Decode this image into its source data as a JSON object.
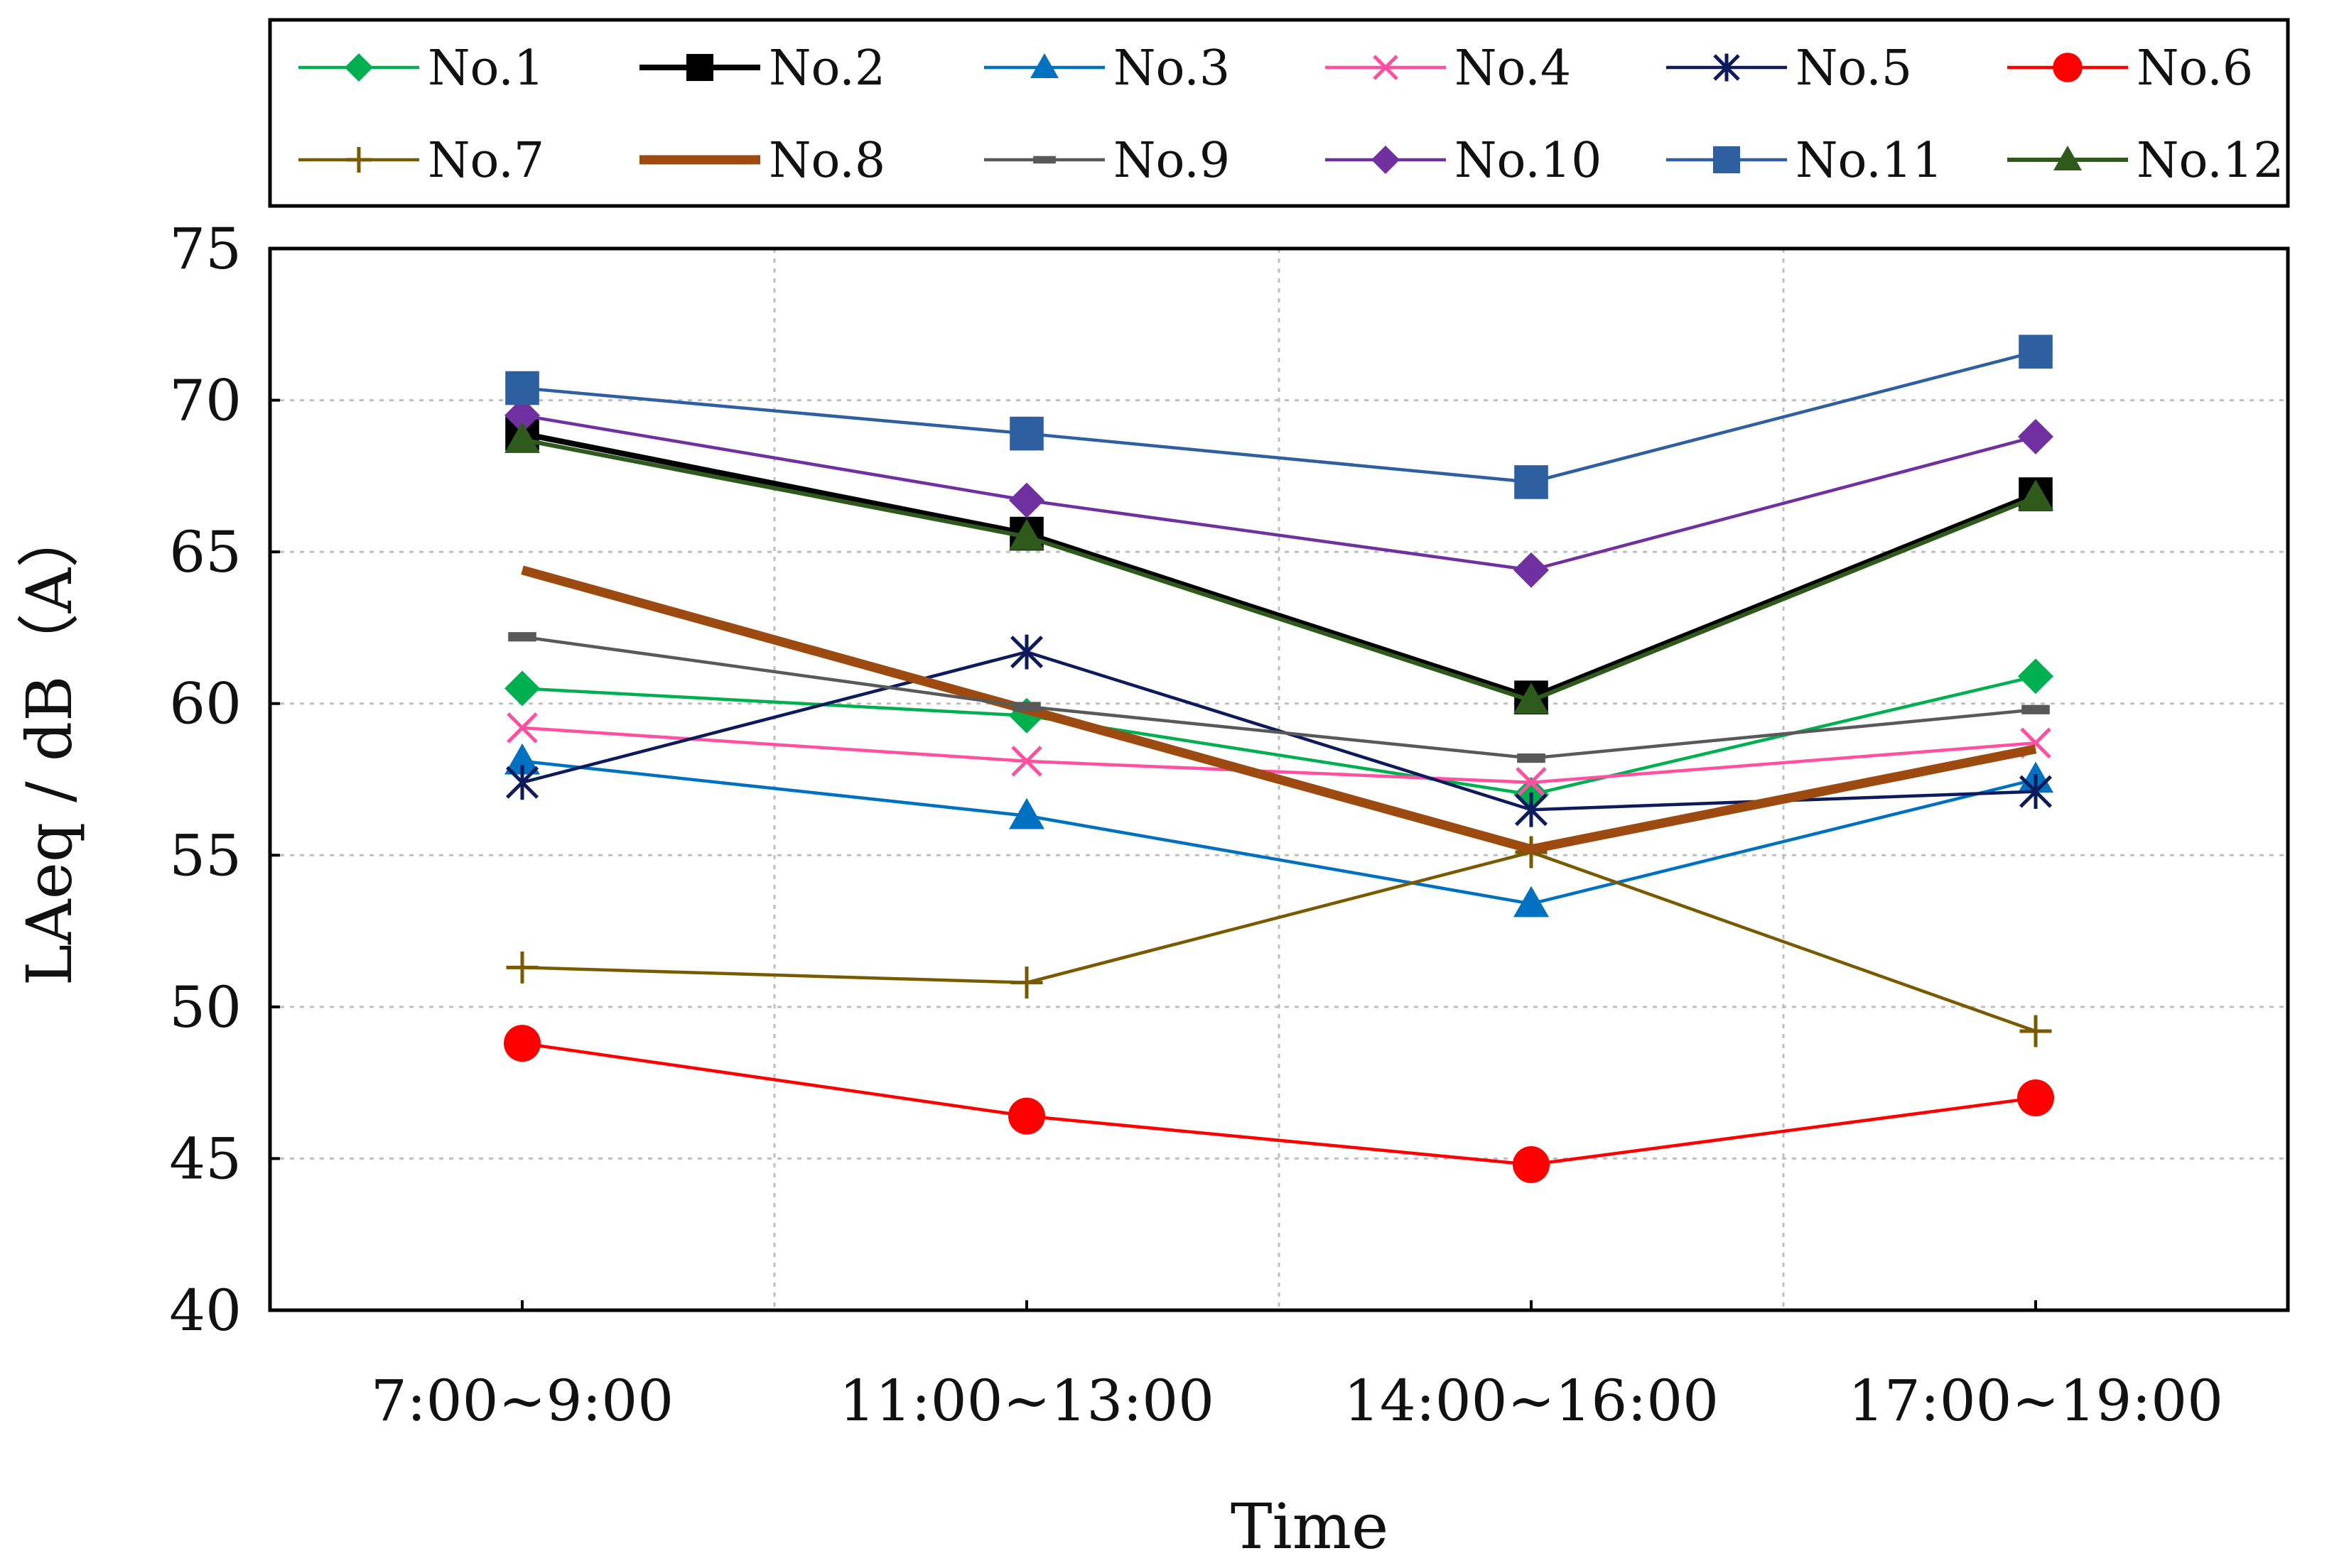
{
  "chart_data": {
    "type": "line",
    "title": "",
    "xlabel": "Time",
    "ylabel": "LAeq / dB（A）",
    "categories": [
      "7:00~9:00",
      "11:00~13:00",
      "14:00~16:00",
      "17:00~19:00"
    ],
    "ylim": [
      40,
      75
    ],
    "yticks": [
      40,
      45,
      50,
      55,
      60,
      65,
      70,
      75
    ],
    "grid": "dotted",
    "legend_position": "top",
    "series": [
      {
        "name": "No.1",
        "values": [
          60.5,
          59.6,
          57.0,
          60.9
        ],
        "color": "#00b050",
        "marker": "diamond"
      },
      {
        "name": "No.2",
        "values": [
          68.9,
          65.6,
          60.2,
          66.9
        ],
        "color": "#000000",
        "marker": "square"
      },
      {
        "name": "No.3",
        "values": [
          58.1,
          56.3,
          53.4,
          57.5
        ],
        "color": "#0070c0",
        "marker": "triangle"
      },
      {
        "name": "No.4",
        "values": [
          59.2,
          58.1,
          57.4,
          58.7
        ],
        "color": "#ff4fa0",
        "marker": "x"
      },
      {
        "name": "No.5",
        "values": [
          57.4,
          61.7,
          56.5,
          57.1
        ],
        "color": "#0d1a5c",
        "marker": "star"
      },
      {
        "name": "No.6",
        "values": [
          48.8,
          46.4,
          44.8,
          47.0
        ],
        "color": "#ff0000",
        "marker": "circle"
      },
      {
        "name": "No.7",
        "values": [
          51.3,
          50.8,
          55.1,
          49.2
        ],
        "color": "#7a5a00",
        "marker": "plus"
      },
      {
        "name": "No.8",
        "values": [
          64.4,
          59.8,
          55.2,
          58.5
        ],
        "color": "#9c4a10",
        "marker": "none"
      },
      {
        "name": "No.9",
        "values": [
          62.2,
          59.9,
          58.2,
          59.8
        ],
        "color": "#595959",
        "marker": "dash"
      },
      {
        "name": "No.10",
        "values": [
          69.5,
          66.7,
          64.4,
          68.8
        ],
        "color": "#7030a0",
        "marker": "diamond"
      },
      {
        "name": "No.11",
        "values": [
          70.4,
          68.9,
          67.3,
          71.6
        ],
        "color": "#2e5fa0",
        "marker": "square"
      },
      {
        "name": "No.12",
        "values": [
          68.7,
          65.5,
          60.1,
          66.8
        ],
        "color": "#2e5a1c",
        "marker": "triangle"
      }
    ]
  }
}
